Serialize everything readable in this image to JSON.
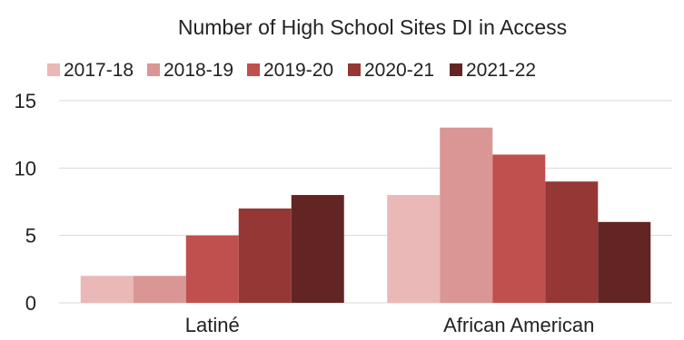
{
  "chart_data": {
    "type": "bar",
    "title": "Number of High School Sites DI in Access",
    "xlabel": "",
    "ylabel": "",
    "categories": [
      "Latiné",
      "African American"
    ],
    "ylim": [
      0,
      15
    ],
    "yticks": [
      0,
      5,
      10,
      15
    ],
    "grid": true,
    "legend_position": "top",
    "series": [
      {
        "name": "2017-18",
        "values": [
          2,
          8
        ],
        "color": "#e9b8b7"
      },
      {
        "name": "2018-19",
        "values": [
          2,
          13
        ],
        "color": "#d99694"
      },
      {
        "name": "2019-20",
        "values": [
          5,
          11
        ],
        "color": "#c0504d"
      },
      {
        "name": "2020-21",
        "values": [
          7,
          9
        ],
        "color": "#953735"
      },
      {
        "name": "2021-22",
        "values": [
          8,
          6
        ],
        "color": "#632523"
      }
    ]
  }
}
